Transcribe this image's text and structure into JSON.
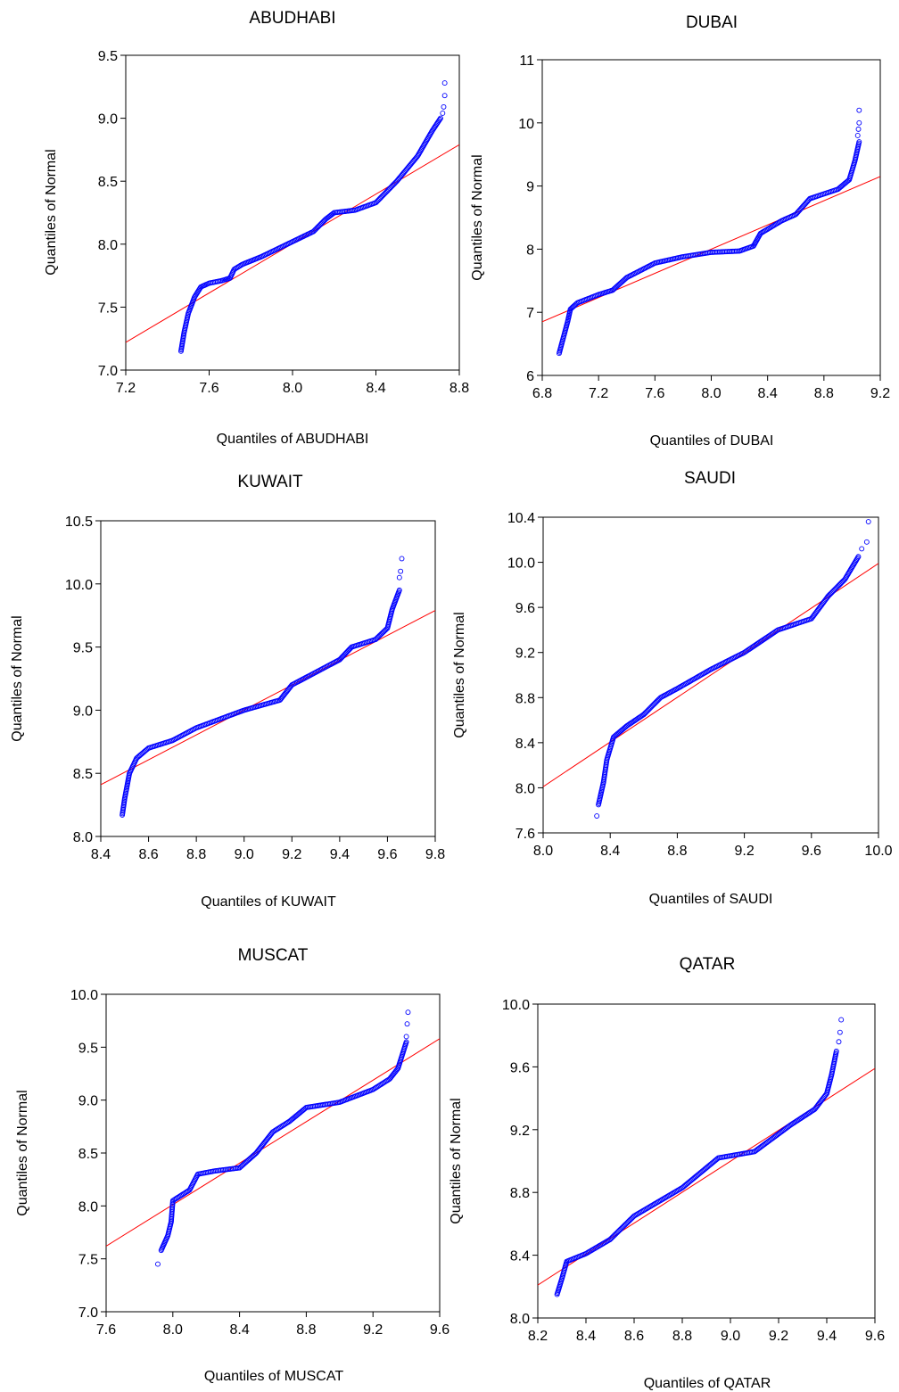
{
  "chart_data": [
    {
      "type": "scatter",
      "title": "ABUDHABI",
      "xlabel": "Quantiles of ABUDHABI",
      "ylabel": "Quantiles of Normal",
      "xlim": [
        7.2,
        8.8
      ],
      "ylim": [
        7.0,
        9.5
      ],
      "xticks": [
        7.2,
        7.6,
        8.0,
        8.4,
        8.8
      ],
      "xtick_labels": [
        "7.2",
        "7.6",
        "8.0",
        "8.4",
        "8.8"
      ],
      "yticks": [
        7.0,
        7.5,
        8.0,
        8.5,
        9.0,
        9.5
      ],
      "ytick_labels": [
        "7.0",
        "7.5",
        "8.0",
        "8.5",
        "9.0",
        "9.5"
      ],
      "grid": false,
      "marker_color": "#0000ff",
      "line_color": "#ff0000",
      "reference_line": [
        [
          7.2,
          7.22
        ],
        [
          8.8,
          8.79
        ]
      ],
      "curve": [
        [
          7.465,
          7.15
        ],
        [
          7.48,
          7.3
        ],
        [
          7.5,
          7.45
        ],
        [
          7.53,
          7.58
        ],
        [
          7.56,
          7.66
        ],
        [
          7.6,
          7.69
        ],
        [
          7.66,
          7.71
        ],
        [
          7.7,
          7.73
        ],
        [
          7.72,
          7.8
        ],
        [
          7.76,
          7.84
        ],
        [
          7.85,
          7.9
        ],
        [
          8.0,
          8.02
        ],
        [
          8.1,
          8.1
        ],
        [
          8.16,
          8.2
        ],
        [
          8.2,
          8.25
        ],
        [
          8.3,
          8.27
        ],
        [
          8.4,
          8.33
        ],
        [
          8.5,
          8.5
        ],
        [
          8.6,
          8.7
        ],
        [
          8.67,
          8.9
        ],
        [
          8.71,
          9.0
        ]
      ],
      "outliers": [
        [
          8.72,
          9.04
        ],
        [
          8.725,
          9.09
        ],
        [
          8.73,
          9.18
        ],
        [
          8.73,
          9.28
        ]
      ]
    },
    {
      "type": "scatter",
      "title": "DUBAI",
      "xlabel": "Quantiles of DUBAI",
      "ylabel": "Quantiles of Normal",
      "xlim": [
        6.8,
        9.2
      ],
      "ylim": [
        6,
        11
      ],
      "xticks": [
        6.8,
        7.2,
        7.6,
        8.0,
        8.4,
        8.8,
        9.2
      ],
      "xtick_labels": [
        "6.8",
        "7.2",
        "7.6",
        "8.0",
        "8.4",
        "8.8",
        "9.2"
      ],
      "yticks": [
        6,
        7,
        8,
        9,
        10,
        11
      ],
      "ytick_labels": [
        "6",
        "7",
        "8",
        "9",
        "10",
        "11"
      ],
      "grid": false,
      "marker_color": "#0000ff",
      "line_color": "#ff0000",
      "reference_line": [
        [
          6.8,
          6.85
        ],
        [
          9.2,
          9.15
        ]
      ],
      "curve": [
        [
          6.92,
          6.35
        ],
        [
          6.95,
          6.6
        ],
        [
          6.98,
          6.85
        ],
        [
          7.0,
          7.05
        ],
        [
          7.05,
          7.15
        ],
        [
          7.2,
          7.28
        ],
        [
          7.3,
          7.35
        ],
        [
          7.4,
          7.55
        ],
        [
          7.6,
          7.78
        ],
        [
          7.8,
          7.88
        ],
        [
          8.0,
          7.95
        ],
        [
          8.2,
          7.97
        ],
        [
          8.3,
          8.05
        ],
        [
          8.35,
          8.25
        ],
        [
          8.5,
          8.45
        ],
        [
          8.6,
          8.55
        ],
        [
          8.7,
          8.8
        ],
        [
          8.9,
          8.95
        ],
        [
          8.98,
          9.1
        ],
        [
          9.02,
          9.4
        ],
        [
          9.05,
          9.7
        ]
      ],
      "outliers": [
        [
          9.04,
          9.8
        ],
        [
          9.045,
          9.9
        ],
        [
          9.05,
          10.0
        ],
        [
          9.05,
          10.2
        ]
      ]
    },
    {
      "type": "scatter",
      "title": "KUWAIT",
      "xlabel": "Quantiles of KUWAIT",
      "ylabel": "Quantiles of Normal",
      "xlim": [
        8.4,
        9.8
      ],
      "ylim": [
        8.0,
        10.5
      ],
      "xticks": [
        8.4,
        8.6,
        8.8,
        9.0,
        9.2,
        9.4,
        9.6,
        9.8
      ],
      "xtick_labels": [
        "8.4",
        "8.6",
        "8.8",
        "9.0",
        "9.2",
        "9.4",
        "9.6",
        "9.8"
      ],
      "yticks": [
        8.0,
        8.5,
        9.0,
        9.5,
        10.0,
        10.5
      ],
      "ytick_labels": [
        "8.0",
        "8.5",
        "9.0",
        "9.5",
        "10.0",
        "10.5"
      ],
      "grid": false,
      "marker_color": "#0000ff",
      "line_color": "#ff0000",
      "reference_line": [
        [
          8.4,
          8.41
        ],
        [
          9.8,
          9.79
        ]
      ],
      "curve": [
        [
          8.49,
          8.17
        ],
        [
          8.5,
          8.3
        ],
        [
          8.52,
          8.5
        ],
        [
          8.55,
          8.62
        ],
        [
          8.6,
          8.7
        ],
        [
          8.7,
          8.76
        ],
        [
          8.8,
          8.86
        ],
        [
          9.0,
          9.0
        ],
        [
          9.15,
          9.08
        ],
        [
          9.2,
          9.2
        ],
        [
          9.3,
          9.3
        ],
        [
          9.4,
          9.4
        ],
        [
          9.45,
          9.5
        ],
        [
          9.55,
          9.56
        ],
        [
          9.6,
          9.65
        ],
        [
          9.62,
          9.8
        ],
        [
          9.65,
          9.95
        ]
      ],
      "outliers": [
        [
          9.65,
          10.05
        ],
        [
          9.655,
          10.1
        ],
        [
          9.66,
          10.2
        ]
      ]
    },
    {
      "type": "scatter",
      "title": "SAUDI",
      "xlabel": "Quantiles of SAUDI",
      "ylabel": "Quantiles of Normal",
      "xlim": [
        8.0,
        10.0
      ],
      "ylim": [
        7.6,
        10.4
      ],
      "xticks": [
        8.0,
        8.4,
        8.8,
        9.2,
        9.6,
        10.0
      ],
      "xtick_labels": [
        "8.0",
        "8.4",
        "8.8",
        "9.2",
        "9.6",
        "10.0"
      ],
      "yticks": [
        7.6,
        8.0,
        8.4,
        8.8,
        9.2,
        9.6,
        10.0,
        10.4
      ],
      "ytick_labels": [
        "7.6",
        "8.0",
        "8.4",
        "8.8",
        "9.2",
        "9.6",
        "10.0",
        "10.4"
      ],
      "grid": false,
      "marker_color": "#0000ff",
      "line_color": "#ff0000",
      "reference_line": [
        [
          8.0,
          8.01
        ],
        [
          10.0,
          9.99
        ]
      ],
      "curve": [
        [
          8.33,
          7.85
        ],
        [
          8.36,
          8.05
        ],
        [
          8.38,
          8.25
        ],
        [
          8.42,
          8.45
        ],
        [
          8.5,
          8.55
        ],
        [
          8.6,
          8.65
        ],
        [
          8.7,
          8.8
        ],
        [
          8.8,
          8.88
        ],
        [
          9.0,
          9.05
        ],
        [
          9.2,
          9.2
        ],
        [
          9.4,
          9.4
        ],
        [
          9.6,
          9.5
        ],
        [
          9.7,
          9.7
        ],
        [
          9.8,
          9.85
        ],
        [
          9.88,
          10.05
        ]
      ],
      "outliers": [
        [
          8.32,
          7.75
        ],
        [
          9.9,
          10.12
        ],
        [
          9.93,
          10.18
        ],
        [
          9.94,
          10.36
        ]
      ]
    },
    {
      "type": "scatter",
      "title": "MUSCAT",
      "xlabel": "Quantiles of MUSCAT",
      "ylabel": "Quantiles of Normal",
      "xlim": [
        7.6,
        9.6
      ],
      "ylim": [
        7.0,
        10.0
      ],
      "xticks": [
        7.6,
        8.0,
        8.4,
        8.8,
        9.2,
        9.6
      ],
      "xtick_labels": [
        "7.6",
        "8.0",
        "8.4",
        "8.8",
        "9.2",
        "9.6"
      ],
      "yticks": [
        7.0,
        7.5,
        8.0,
        8.5,
        9.0,
        9.5,
        10.0
      ],
      "ytick_labels": [
        "7.0",
        "7.5",
        "8.0",
        "8.5",
        "9.0",
        "9.5",
        "10.0"
      ],
      "grid": false,
      "marker_color": "#0000ff",
      "line_color": "#ff0000",
      "reference_line": [
        [
          7.6,
          7.62
        ],
        [
          9.6,
          9.58
        ]
      ],
      "curve": [
        [
          7.93,
          7.58
        ],
        [
          7.97,
          7.72
        ],
        [
          7.99,
          7.85
        ],
        [
          8.0,
          8.05
        ],
        [
          8.05,
          8.1
        ],
        [
          8.1,
          8.15
        ],
        [
          8.15,
          8.3
        ],
        [
          8.25,
          8.33
        ],
        [
          8.4,
          8.36
        ],
        [
          8.5,
          8.5
        ],
        [
          8.6,
          8.7
        ],
        [
          8.7,
          8.8
        ],
        [
          8.8,
          8.93
        ],
        [
          9.0,
          8.98
        ],
        [
          9.2,
          9.1
        ],
        [
          9.3,
          9.2
        ],
        [
          9.35,
          9.3
        ],
        [
          9.38,
          9.45
        ],
        [
          9.4,
          9.55
        ]
      ],
      "outliers": [
        [
          7.91,
          7.45
        ],
        [
          9.4,
          9.6
        ],
        [
          9.405,
          9.72
        ],
        [
          9.41,
          9.83
        ]
      ]
    },
    {
      "type": "scatter",
      "title": "QATAR",
      "xlabel": "Quantiles of QATAR",
      "ylabel": "Quantiles of Normal",
      "xlim": [
        8.2,
        9.6
      ],
      "ylim": [
        8.0,
        10.0
      ],
      "xticks": [
        8.2,
        8.4,
        8.6,
        8.8,
        9.0,
        9.2,
        9.4,
        9.6
      ],
      "xtick_labels": [
        "8.2",
        "8.4",
        "8.6",
        "8.8",
        "9.0",
        "9.2",
        "9.4",
        "9.6"
      ],
      "yticks": [
        8.0,
        8.4,
        8.8,
        9.2,
        9.6,
        10.0
      ],
      "ytick_labels": [
        "8.0",
        "8.4",
        "8.8",
        "9.2",
        "9.6",
        "10.0"
      ],
      "grid": false,
      "marker_color": "#0000ff",
      "line_color": "#ff0000",
      "reference_line": [
        [
          8.2,
          8.21
        ],
        [
          9.6,
          9.59
        ]
      ],
      "curve": [
        [
          8.28,
          8.15
        ],
        [
          8.3,
          8.25
        ],
        [
          8.32,
          8.36
        ],
        [
          8.4,
          8.41
        ],
        [
          8.5,
          8.5
        ],
        [
          8.6,
          8.65
        ],
        [
          8.8,
          8.83
        ],
        [
          8.95,
          9.02
        ],
        [
          9.1,
          9.06
        ],
        [
          9.25,
          9.23
        ],
        [
          9.35,
          9.33
        ],
        [
          9.4,
          9.43
        ],
        [
          9.42,
          9.55
        ],
        [
          9.44,
          9.7
        ]
      ],
      "outliers": [
        [
          9.45,
          9.76
        ],
        [
          9.455,
          9.82
        ],
        [
          9.46,
          9.9
        ]
      ]
    }
  ]
}
